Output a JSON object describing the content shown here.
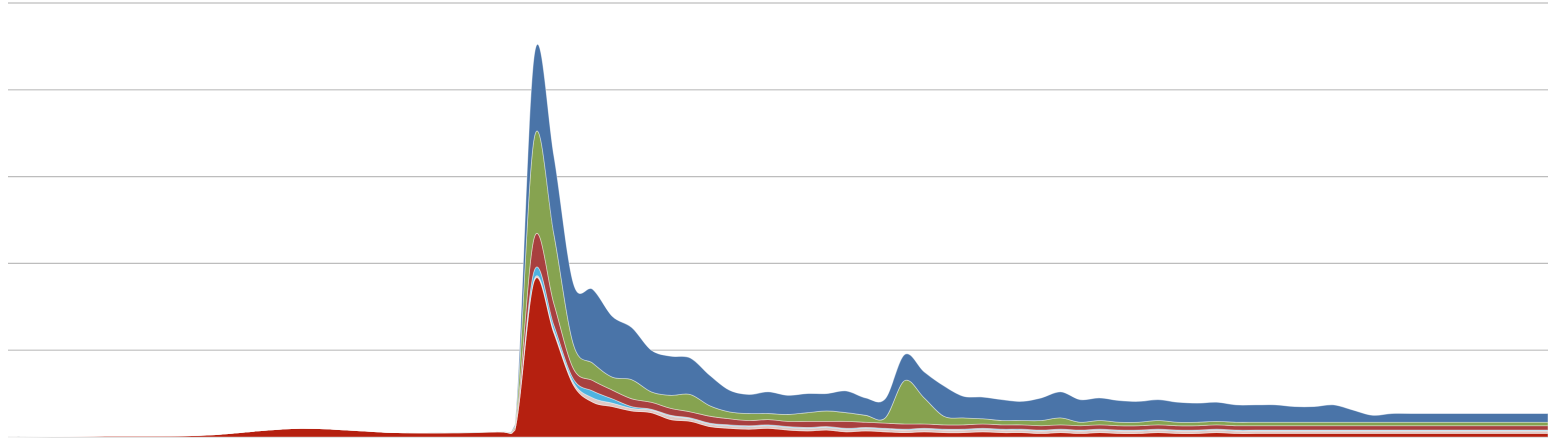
{
  "chart_data": {
    "type": "area",
    "stacked": true,
    "title": "",
    "xlabel": "",
    "ylabel": "",
    "ylim": [
      0,
      5
    ],
    "yticks": [
      0,
      1,
      2,
      3,
      4,
      5
    ],
    "grid": true,
    "legend": "none",
    "x": [
      0,
      5,
      10,
      15,
      20,
      25,
      26,
      27,
      28,
      29,
      30,
      31,
      32,
      33,
      34,
      35,
      36,
      37,
      38,
      39,
      40,
      41,
      42,
      43,
      44,
      45,
      46,
      47,
      48,
      49,
      50,
      51,
      52,
      53,
      54,
      55,
      56,
      57,
      58,
      59,
      60,
      61,
      62,
      63,
      64,
      65,
      66,
      67,
      68,
      69,
      70,
      71,
      72,
      73,
      74,
      75,
      76,
      77,
      78,
      79
    ],
    "series": [
      {
        "color": "#b52010",
        "values": [
          0,
          0.01,
          0.02,
          0.1,
          0.05,
          0.06,
          0.08,
          1.8,
          1.2,
          0.6,
          0.4,
          0.35,
          0.3,
          0.28,
          0.2,
          0.18,
          0.12,
          0.1,
          0.09,
          0.1,
          0.08,
          0.07,
          0.08,
          0.06,
          0.07,
          0.06,
          0.05,
          0.06,
          0.05,
          0.05,
          0.06,
          0.05,
          0.05,
          0.04,
          0.05,
          0.04,
          0.05,
          0.04,
          0.04,
          0.05,
          0.04,
          0.04,
          0.05,
          0.04,
          0.04,
          0.04,
          0.04,
          0.04,
          0.04,
          0.04,
          0.04,
          0.04,
          0.04,
          0.04,
          0.04,
          0.04,
          0.04,
          0.04,
          0.04,
          0.04
        ]
      },
      {
        "color": "#e0c8c4",
        "values": [
          0,
          0,
          0,
          0,
          0,
          0,
          0,
          0.02,
          0.03,
          0.03,
          0.05,
          0.04,
          0.03,
          0.03,
          0.04,
          0.03,
          0.03,
          0.03,
          0.03,
          0.03,
          0.03,
          0.03,
          0.03,
          0.03,
          0.03,
          0.03,
          0.03,
          0.03,
          0.03,
          0.03,
          0.03,
          0.03,
          0.03,
          0.03,
          0.03,
          0.03,
          0.03,
          0.03,
          0.03,
          0.03,
          0.03,
          0.03,
          0.03,
          0.03,
          0.03,
          0.03,
          0.03,
          0.03,
          0.03,
          0.03,
          0.03,
          0.03,
          0.03,
          0.03,
          0.03,
          0.03,
          0.03,
          0.03,
          0.03,
          0.03
        ]
      },
      {
        "color": "#4fb3e0",
        "values": [
          0,
          0,
          0,
          0,
          0,
          0,
          0,
          0.1,
          0.06,
          0.04,
          0.08,
          0.05,
          0.02,
          0.01,
          0.01,
          0.01,
          0.01,
          0.01,
          0.01,
          0.01,
          0.01,
          0.01,
          0.01,
          0.01,
          0.01,
          0.01,
          0.01,
          0.01,
          0.01,
          0.01,
          0.01,
          0.01,
          0.01,
          0.01,
          0.01,
          0.01,
          0.01,
          0.01,
          0.01,
          0.01,
          0.01,
          0.01,
          0.01,
          0.01,
          0.01,
          0.01,
          0.01,
          0.01,
          0.01,
          0.01,
          0.01,
          0.01,
          0.01,
          0.01,
          0.01,
          0.01,
          0.01,
          0.01,
          0.01,
          0.01
        ]
      },
      {
        "color": "#a8403f",
        "values": [
          0,
          0,
          0,
          0,
          0,
          0,
          0.02,
          0.38,
          0.25,
          0.12,
          0.12,
          0.1,
          0.09,
          0.08,
          0.08,
          0.07,
          0.08,
          0.07,
          0.06,
          0.06,
          0.06,
          0.07,
          0.06,
          0.08,
          0.06,
          0.06,
          0.06,
          0.05,
          0.05,
          0.05,
          0.05,
          0.05,
          0.05,
          0.05,
          0.05,
          0.05,
          0.05,
          0.05,
          0.05,
          0.05,
          0.05,
          0.05,
          0.05,
          0.05,
          0.05,
          0.05,
          0.05,
          0.05,
          0.05,
          0.05,
          0.05,
          0.05,
          0.05,
          0.05,
          0.05,
          0.05,
          0.05,
          0.05,
          0.05,
          0.05
        ]
      },
      {
        "color": "#86a350",
        "values": [
          0,
          0,
          0,
          0,
          0,
          0,
          0.02,
          1.15,
          0.8,
          0.28,
          0.2,
          0.15,
          0.22,
          0.12,
          0.15,
          0.2,
          0.12,
          0.08,
          0.08,
          0.07,
          0.08,
          0.1,
          0.12,
          0.1,
          0.08,
          0.06,
          0.5,
          0.3,
          0.1,
          0.08,
          0.06,
          0.05,
          0.05,
          0.06,
          0.08,
          0.04,
          0.05,
          0.04,
          0.04,
          0.05,
          0.04,
          0.04,
          0.04,
          0.04,
          0.04,
          0.04,
          0.04,
          0.04,
          0.04,
          0.04,
          0.04,
          0.04,
          0.04,
          0.04,
          0.04,
          0.04,
          0.04,
          0.04,
          0.04,
          0.04
        ]
      },
      {
        "color": "#4a74a8",
        "values": [
          0,
          0,
          0,
          0,
          0,
          0,
          0.02,
          0.95,
          0.9,
          0.7,
          0.85,
          0.7,
          0.6,
          0.48,
          0.45,
          0.42,
          0.35,
          0.25,
          0.22,
          0.25,
          0.22,
          0.22,
          0.2,
          0.25,
          0.2,
          0.22,
          0.3,
          0.3,
          0.35,
          0.25,
          0.25,
          0.24,
          0.22,
          0.26,
          0.3,
          0.26,
          0.26,
          0.25,
          0.24,
          0.24,
          0.23,
          0.22,
          0.22,
          0.2,
          0.2,
          0.2,
          0.18,
          0.18,
          0.2,
          0.14,
          0.08,
          0.1,
          0.1,
          0.1,
          0.1,
          0.1,
          0.1,
          0.1,
          0.1,
          0.1
        ]
      }
    ]
  }
}
